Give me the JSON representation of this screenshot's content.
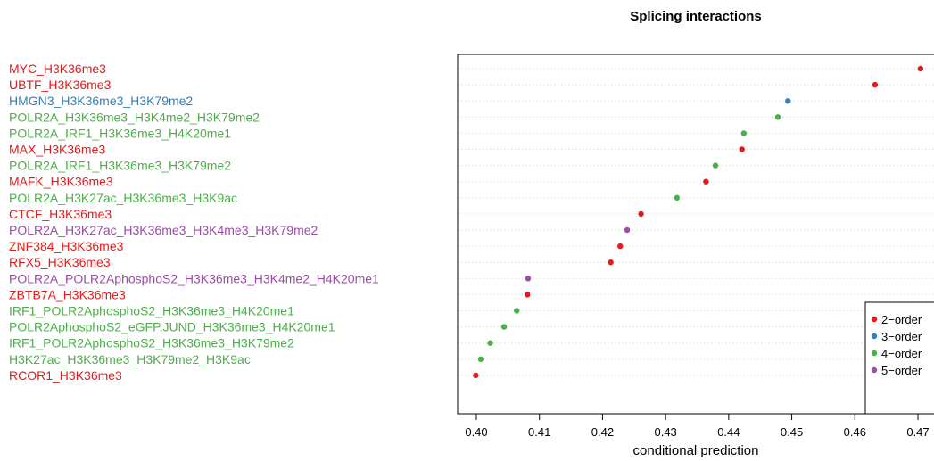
{
  "chart_data": {
    "type": "scatter",
    "title": "Splicing interactions",
    "xlabel": "conditional prediction",
    "xlim": [
      0.4,
      0.47
    ],
    "x_ticks": [
      "0.40",
      "0.41",
      "0.42",
      "0.43",
      "0.44",
      "0.45",
      "0.46",
      "0.47"
    ],
    "grid": "horizontal dotted",
    "legend_position": "bottom-right",
    "colors": {
      "2-order": "#e41a1c",
      "3-order": "#377eb8",
      "4-order": "#4daf4a",
      "5-order": "#984ea3"
    },
    "legend": [
      {
        "label": "2−order",
        "group": "2-order"
      },
      {
        "label": "3−order",
        "group": "3-order"
      },
      {
        "label": "4−order",
        "group": "4-order"
      },
      {
        "label": "5−order",
        "group": "5-order"
      }
    ],
    "points": [
      {
        "label": "MYC_H3K36me3",
        "value": 0.4704,
        "group": "2-order"
      },
      {
        "label": "UBTF_H3K36me3",
        "value": 0.4632,
        "group": "2-order"
      },
      {
        "label": "HMGN3_H3K36me3_H3K79me2",
        "value": 0.4494,
        "group": "3-order"
      },
      {
        "label": "POLR2A_H3K36me3_H3K4me2_H3K79me2",
        "value": 0.4478,
        "group": "4-order"
      },
      {
        "label": "POLR2A_IRF1_H3K36me3_H4K20me1",
        "value": 0.4424,
        "group": "4-order"
      },
      {
        "label": "MAX_H3K36me3",
        "value": 0.4421,
        "group": "2-order"
      },
      {
        "label": "POLR2A_IRF1_H3K36me3_H3K79me2",
        "value": 0.4379,
        "group": "4-order"
      },
      {
        "label": "MAFK_H3K36me3",
        "value": 0.4364,
        "group": "2-order"
      },
      {
        "label": "POLR2A_H3K27ac_H3K36me3_H3K9ac",
        "value": 0.4318,
        "group": "4-order"
      },
      {
        "label": "CTCF_H3K36me3",
        "value": 0.4261,
        "group": "2-order"
      },
      {
        "label": "POLR2A_H3K27ac_H3K36me3_H3K4me3_H3K79me2",
        "value": 0.4239,
        "group": "5-order"
      },
      {
        "label": "ZNF384_H3K36me3",
        "value": 0.4228,
        "group": "2-order"
      },
      {
        "label": "RFX5_H3K36me3",
        "value": 0.4213,
        "group": "2-order"
      },
      {
        "label": "POLR2A_POLR2AphosphoS2_H3K36me3_H3K4me2_H4K20me1",
        "value": 0.4082,
        "group": "5-order"
      },
      {
        "label": "ZBTB7A_H3K36me3",
        "value": 0.4081,
        "group": "2-order"
      },
      {
        "label": "IRF1_POLR2AphosphoS2_H3K36me3_H4K20me1",
        "value": 0.4064,
        "group": "4-order"
      },
      {
        "label": "POLR2AphosphoS2_eGFP.JUND_H3K36me3_H4K20me1",
        "value": 0.4044,
        "group": "4-order"
      },
      {
        "label": "IRF1_POLR2AphosphoS2_H3K36me3_H3K79me2",
        "value": 0.4022,
        "group": "4-order"
      },
      {
        "label": "H3K27ac_H3K36me3_H3K79me2_H3K9ac",
        "value": 0.4007,
        "group": "4-order"
      },
      {
        "label": "RCOR1_H3K36me3",
        "value": 0.3999,
        "group": "2-order"
      }
    ]
  }
}
